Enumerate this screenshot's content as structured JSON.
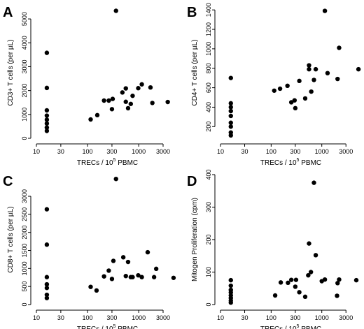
{
  "chart_data": [
    {
      "type": "scatter",
      "panel": "A",
      "xlabel": "TRECs / 10",
      "xlabel_sup": "5",
      "xlabel_tail": "PBMC",
      "ylabel": "CD3+ T cells (per µL)",
      "x_scale": "log",
      "x_ticks": [
        10,
        30,
        100,
        300,
        1000,
        3000
      ],
      "x_tick_labels": [
        "10",
        "30",
        "100",
        "300",
        "1000",
        "3000"
      ],
      "y_ticks": [
        0,
        1000,
        2000,
        3000,
        4000,
        5000
      ],
      "y_tick_labels": [
        "0",
        "1000",
        "2000",
        "3000",
        "4000",
        "5000"
      ],
      "xlim": [
        10,
        6000
      ],
      "ylim": [
        0,
        5500
      ],
      "points": [
        [
          16,
          3580
        ],
        [
          16,
          2110
        ],
        [
          16,
          1170
        ],
        [
          16,
          950
        ],
        [
          16,
          780
        ],
        [
          16,
          620
        ],
        [
          16,
          450
        ],
        [
          16,
          310
        ],
        [
          115,
          790
        ],
        [
          155,
          970
        ],
        [
          210,
          1580
        ],
        [
          260,
          1580
        ],
        [
          300,
          1220
        ],
        [
          310,
          1650
        ],
        [
          360,
          5340
        ],
        [
          480,
          1920
        ],
        [
          560,
          2090
        ],
        [
          560,
          1530
        ],
        [
          620,
          1260
        ],
        [
          700,
          1440
        ],
        [
          760,
          1780
        ],
        [
          980,
          2100
        ],
        [
          1150,
          2260
        ],
        [
          1700,
          2130
        ],
        [
          1850,
          1480
        ],
        [
          3700,
          1520
        ]
      ]
    },
    {
      "type": "scatter",
      "panel": "B",
      "xlabel": "TRECs / 10",
      "xlabel_sup": "5",
      "xlabel_tail": "PBMC",
      "ylabel": "CD4+ T cells (per µL)",
      "x_scale": "log",
      "x_ticks": [
        10,
        30,
        100,
        300,
        1000,
        3000
      ],
      "x_tick_labels": [
        "10",
        "30",
        "100",
        "300",
        "1000",
        "3000"
      ],
      "y_ticks": [
        200,
        400,
        600,
        800,
        1000,
        1200,
        1400
      ],
      "y_tick_labels": [
        "200",
        "400",
        "600",
        "800",
        "1000",
        "1200",
        "1400"
      ],
      "xlim": [
        10,
        6000
      ],
      "ylim": [
        80,
        1430
      ],
      "points": [
        [
          16,
          700
        ],
        [
          16,
          440
        ],
        [
          16,
          400
        ],
        [
          16,
          360
        ],
        [
          16,
          310
        ],
        [
          16,
          240
        ],
        [
          16,
          200
        ],
        [
          16,
          140
        ],
        [
          16,
          110
        ],
        [
          115,
          570
        ],
        [
          150,
          590
        ],
        [
          210,
          620
        ],
        [
          250,
          450
        ],
        [
          290,
          470
        ],
        [
          300,
          390
        ],
        [
          360,
          670
        ],
        [
          470,
          490
        ],
        [
          560,
          830
        ],
        [
          560,
          790
        ],
        [
          620,
          560
        ],
        [
          700,
          680
        ],
        [
          760,
          790
        ],
        [
          1150,
          1390
        ],
        [
          1300,
          750
        ],
        [
          2050,
          690
        ],
        [
          2200,
          1010
        ],
        [
          5300,
          790
        ]
      ]
    },
    {
      "type": "scatter",
      "panel": "C",
      "xlabel": "TRECs / 10",
      "xlabel_sup": "5",
      "xlabel_tail": "PBMC",
      "ylabel": "CD8+ T cells (per µL)",
      "x_scale": "log",
      "x_ticks": [
        10,
        30,
        100,
        300,
        1000,
        3000
      ],
      "x_tick_labels": [
        "10",
        "30",
        "100",
        "300",
        "1000",
        "3000"
      ],
      "y_ticks": [
        0,
        500,
        1000,
        1500,
        2000,
        2500,
        3000
      ],
      "y_tick_labels": [
        "0",
        "500",
        "1000",
        "1500",
        "2000",
        "2500",
        "3000"
      ],
      "xlim": [
        10,
        6000
      ],
      "ylim": [
        0,
        3600
      ],
      "points": [
        [
          16,
          2640
        ],
        [
          16,
          1660
        ],
        [
          16,
          760
        ],
        [
          16,
          560
        ],
        [
          16,
          460
        ],
        [
          16,
          270
        ],
        [
          16,
          180
        ],
        [
          115,
          490
        ],
        [
          150,
          390
        ],
        [
          210,
          780
        ],
        [
          260,
          940
        ],
        [
          300,
          710
        ],
        [
          320,
          1210
        ],
        [
          360,
          3480
        ],
        [
          500,
          1310
        ],
        [
          560,
          790
        ],
        [
          620,
          1180
        ],
        [
          700,
          760
        ],
        [
          760,
          760
        ],
        [
          980,
          810
        ],
        [
          1150,
          760
        ],
        [
          1500,
          1450
        ],
        [
          2000,
          760
        ],
        [
          2200,
          990
        ],
        [
          4800,
          740
        ]
      ]
    },
    {
      "type": "scatter",
      "panel": "D",
      "xlabel": "TRECs / 10",
      "xlabel_sup": "5",
      "xlabel_tail": "PBMC",
      "ylabel": "Mitogen Proliferation (cpm)",
      "x_scale": "log",
      "x_ticks": [
        10,
        30,
        100,
        300,
        1000,
        3000
      ],
      "x_tick_labels": [
        "10",
        "30",
        "100",
        "300",
        "1000",
        "3000"
      ],
      "y_ticks": [
        0,
        100,
        200,
        300,
        400
      ],
      "y_tick_labels": [
        "0",
        "100",
        "200",
        "300",
        "400"
      ],
      "xlim": [
        10,
        6000
      ],
      "ylim": [
        0,
        400
      ],
      "points": [
        [
          16,
          75
        ],
        [
          16,
          58
        ],
        [
          16,
          45
        ],
        [
          16,
          37
        ],
        [
          16,
          28
        ],
        [
          16,
          20
        ],
        [
          16,
          12
        ],
        [
          16,
          6
        ],
        [
          120,
          28
        ],
        [
          155,
          68
        ],
        [
          215,
          67
        ],
        [
          250,
          76
        ],
        [
          300,
          55
        ],
        [
          310,
          76
        ],
        [
          360,
          38
        ],
        [
          470,
          24
        ],
        [
          540,
          90
        ],
        [
          560,
          188
        ],
        [
          610,
          100
        ],
        [
          700,
          375
        ],
        [
          760,
          152
        ],
        [
          1000,
          72
        ],
        [
          1150,
          77
        ],
        [
          2000,
          27
        ],
        [
          2050,
          66
        ],
        [
          2200,
          77
        ],
        [
          4800,
          75
        ]
      ]
    }
  ]
}
